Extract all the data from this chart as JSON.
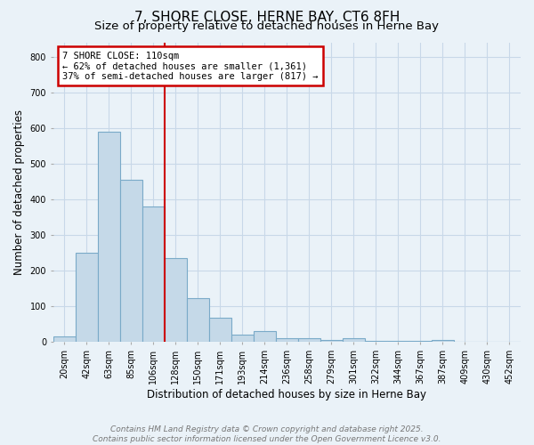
{
  "title": "7, SHORE CLOSE, HERNE BAY, CT6 8FH",
  "subtitle": "Size of property relative to detached houses in Herne Bay",
  "xlabel": "Distribution of detached houses by size in Herne Bay",
  "ylabel": "Number of detached properties",
  "categories": [
    "20sqm",
    "42sqm",
    "63sqm",
    "85sqm",
    "106sqm",
    "128sqm",
    "150sqm",
    "171sqm",
    "193sqm",
    "214sqm",
    "236sqm",
    "258sqm",
    "279sqm",
    "301sqm",
    "322sqm",
    "344sqm",
    "367sqm",
    "387sqm",
    "409sqm",
    "430sqm",
    "452sqm"
  ],
  "values": [
    15,
    250,
    590,
    455,
    380,
    235,
    122,
    68,
    20,
    30,
    10,
    12,
    5,
    10,
    4,
    3,
    3,
    5,
    2,
    2,
    2
  ],
  "bar_color": "#c5d9e8",
  "bar_edge_color": "#7aaac8",
  "bar_alpha": 1.0,
  "annotation_line1": "7 SHORE CLOSE: 110sqm",
  "annotation_line2": "← 62% of detached houses are smaller (1,361)",
  "annotation_line3": "37% of semi-detached houses are larger (817) →",
  "annotation_box_color": "#ffffff",
  "annotation_box_edge_color": "#cc0000",
  "red_line_color": "#cc0000",
  "ylim": [
    0,
    840
  ],
  "yticks": [
    0,
    100,
    200,
    300,
    400,
    500,
    600,
    700,
    800
  ],
  "grid_color": "#c8d8e8",
  "background_color": "#eaf2f8",
  "plot_bg_color": "#eaf2f8",
  "footer_line1": "Contains HM Land Registry data © Crown copyright and database right 2025.",
  "footer_line2": "Contains public sector information licensed under the Open Government Licence v3.0.",
  "title_fontsize": 11,
  "subtitle_fontsize": 9.5,
  "label_fontsize": 8.5,
  "tick_fontsize": 7,
  "annotation_fontsize": 7.5,
  "footer_fontsize": 6.5
}
